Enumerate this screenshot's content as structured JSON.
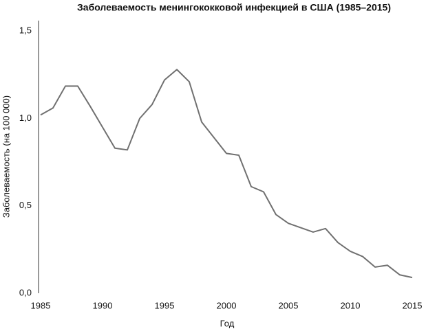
{
  "chart_data": {
    "type": "line",
    "title": "Заболеваемость менингококковой инфекцией в США (1985–2015)",
    "x_label": "Год",
    "y_label": "Заболеваемость (на 100 000)",
    "x": [
      1985,
      1986,
      1987,
      1988,
      1989,
      1990,
      1991,
      1992,
      1993,
      1994,
      1995,
      1996,
      1997,
      1998,
      1999,
      2000,
      2001,
      2002,
      2003,
      2004,
      2005,
      2006,
      2007,
      2008,
      2009,
      2010,
      2011,
      2012,
      2013,
      2014,
      2015
    ],
    "series": [
      {
        "name": "Заболеваемость",
        "color": "#707070",
        "values": [
          1.02,
          1.06,
          1.185,
          1.185,
          1.07,
          0.95,
          0.83,
          0.82,
          1.0,
          1.08,
          1.22,
          1.28,
          1.21,
          0.98,
          0.89,
          0.8,
          0.79,
          0.61,
          0.58,
          0.45,
          0.4,
          0.375,
          0.35,
          0.37,
          0.29,
          0.24,
          0.21,
          0.15,
          0.16,
          0.105,
          0.09
        ]
      }
    ],
    "xlim": [
      1985,
      2016
    ],
    "xticks": [
      1985,
      1990,
      1995,
      2000,
      2005,
      2010,
      2015
    ],
    "ylim": [
      0,
      1.56
    ],
    "yticks": [
      {
        "value": 0,
        "label": "0,0"
      },
      {
        "value": 0.5,
        "label": "0,5"
      },
      {
        "value": 1,
        "label": "1,0"
      },
      {
        "value": 1.5,
        "label": "1,5"
      }
    ],
    "grid": false
  }
}
